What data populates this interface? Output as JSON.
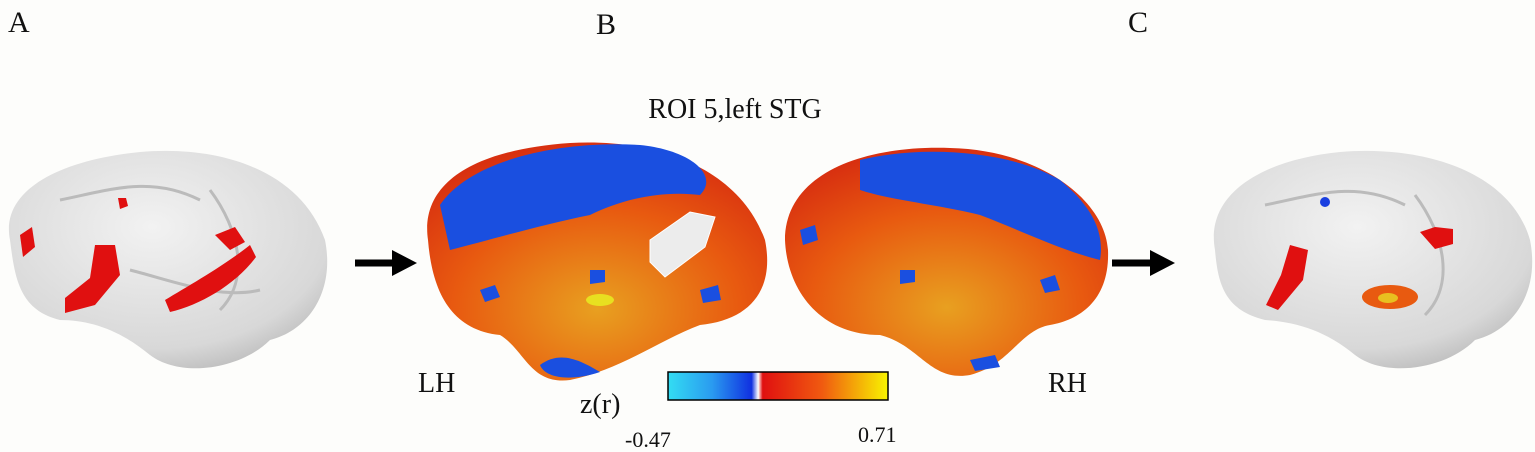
{
  "panels": {
    "a": {
      "label": "A"
    },
    "b": {
      "label": "B",
      "title": "ROI 5,left STG",
      "left_hemisphere": "LH",
      "right_hemisphere": "RH"
    },
    "c": {
      "label": "C"
    }
  },
  "colorbar": {
    "label": "z(r)",
    "min_label": "-0.47",
    "max_label": "0.71"
  }
}
